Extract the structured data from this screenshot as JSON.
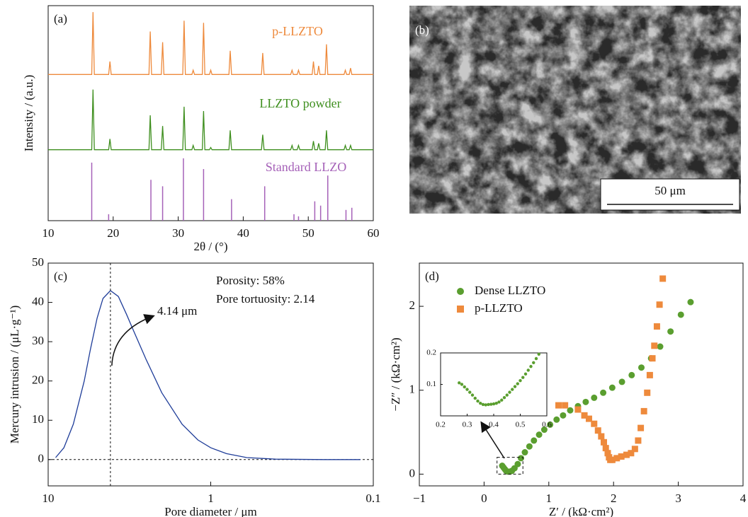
{
  "chart_data": [
    {
      "type": "line",
      "panel_label": "(a)",
      "xlabel": "2θ / (°)",
      "ylabel": "Intensity / (a.u.)",
      "xlim": [
        10,
        60
      ],
      "xticks": [
        10,
        20,
        30,
        40,
        50,
        60
      ],
      "ylim": [
        0,
        100
      ],
      "series": [
        {
          "name": "p-LLZTO",
          "color": "#ee8a3c",
          "x": [
            10,
            16.7,
            16.9,
            17.1,
            19.3,
            19.5,
            19.7,
            25.5,
            25.7,
            25.9,
            27.4,
            27.6,
            27.8,
            30.7,
            30.9,
            31.1,
            32.1,
            32.3,
            32.5,
            33.7,
            33.9,
            34.1,
            34.8,
            35.0,
            35.2,
            37.8,
            38.0,
            38.2,
            42.8,
            43.0,
            43.2,
            47.3,
            47.5,
            47.7,
            48.3,
            48.5,
            48.7,
            50.6,
            50.8,
            51.0,
            51.4,
            51.6,
            51.8,
            52.6,
            52.8,
            53.0,
            55.5,
            55.7,
            55.9,
            56.3,
            56.5,
            56.7,
            60
          ],
          "values": [
            68,
            68,
            97,
            68,
            68,
            74,
            68,
            68,
            88,
            68,
            68,
            83,
            68,
            68,
            93,
            68,
            68,
            70,
            68,
            68,
            92,
            68,
            68,
            70,
            68,
            68,
            79,
            68,
            68,
            78,
            68,
            68,
            70,
            68,
            68,
            70,
            68,
            68,
            74,
            68,
            68,
            72,
            68,
            68,
            82,
            68,
            68,
            70,
            68,
            68,
            71,
            68,
            68
          ]
        },
        {
          "name": "LLZTO powder",
          "color": "#3f8f1f",
          "x": [
            10,
            16.7,
            16.9,
            17.1,
            19.3,
            19.5,
            19.7,
            25.5,
            25.7,
            25.9,
            27.4,
            27.6,
            27.8,
            30.7,
            30.9,
            31.1,
            32.1,
            32.3,
            32.5,
            33.7,
            33.9,
            34.1,
            34.8,
            35.0,
            35.2,
            37.8,
            38.0,
            38.2,
            42.8,
            43.0,
            43.2,
            47.3,
            47.5,
            47.7,
            48.3,
            48.5,
            48.7,
            50.6,
            50.8,
            51.0,
            51.4,
            51.6,
            51.8,
            52.6,
            52.8,
            53.0,
            55.5,
            55.7,
            55.9,
            56.3,
            56.5,
            56.7,
            60
          ],
          "values": [
            33,
            33,
            61,
            33,
            33,
            38,
            33,
            33,
            49,
            33,
            33,
            44,
            33,
            33,
            53,
            33,
            33,
            35,
            33,
            33,
            51,
            33,
            33,
            34,
            33,
            33,
            42,
            33,
            33,
            40,
            33,
            33,
            35,
            33,
            33,
            35,
            33,
            33,
            37,
            33,
            33,
            36,
            33,
            33,
            42,
            33,
            33,
            35,
            33,
            33,
            35,
            33,
            33
          ]
        },
        {
          "name": "Standard LLZO",
          "color": "#a561b8",
          "style": "stick",
          "x": [
            16.7,
            19.3,
            25.8,
            27.6,
            30.8,
            33.9,
            38.2,
            43.3,
            47.8,
            48.5,
            51.0,
            51.9,
            53.0,
            55.8,
            56.7
          ],
          "values": [
            27,
            3,
            19,
            16,
            29,
            24,
            10,
            16,
            3,
            2,
            9,
            7,
            21,
            5,
            6
          ]
        }
      ]
    },
    {
      "type": "line",
      "panel_label": "(c)",
      "xlabel": "Pore diameter / μm",
      "ylabel": "Mercury intrusion / (μL·g⁻¹)",
      "xlog": true,
      "xlim": [
        10,
        0.1
      ],
      "xticks": [
        10,
        1,
        0.1
      ],
      "ylim": [
        -6.7,
        50
      ],
      "yticks": [
        0,
        10,
        20,
        30,
        40,
        50
      ],
      "dashed_zero": true,
      "annotations": [
        {
          "text": "Porosity: 58%"
        },
        {
          "text": "Pore tortuosity: 2.14"
        },
        {
          "text": "4.14 μm",
          "x": 4.14
        }
      ],
      "series": [
        {
          "color": "#1f3d99",
          "x": [
            9,
            8,
            7,
            6,
            5.5,
            5,
            4.6,
            4.14,
            3.7,
            3.3,
            3,
            2.5,
            2,
            1.5,
            1.2,
            1,
            0.8,
            0.6,
            0.4,
            0.2,
            0.12
          ],
          "values": [
            0.5,
            3,
            9,
            20,
            28,
            36,
            41,
            43,
            41.5,
            37,
            33,
            25.5,
            17,
            9,
            5,
            3,
            1.5,
            0.5,
            0.1,
            0,
            0
          ]
        }
      ]
    },
    {
      "type": "scatter",
      "panel_label": "(d)",
      "xlabel": "Z′ / (kΩ·cm²)",
      "ylabel": "−Z″ / (kΩ·cm²)",
      "xlim": [
        -1,
        4
      ],
      "xticks": [
        {
          "value": -1,
          "label": "−1"
        },
        0,
        1,
        2,
        3,
        4
      ],
      "ylim": [
        -0.14,
        2.515
      ],
      "yticks": [
        0,
        1,
        2
      ],
      "series": [
        {
          "name": "Dense LLZTO",
          "color": "#5a9e2f",
          "marker": "circle",
          "x": [
            0.28,
            0.3,
            0.32,
            0.34,
            0.37,
            0.4,
            0.43,
            0.47,
            0.52,
            0.57,
            0.63,
            0.7,
            0.77,
            0.85,
            0.93,
            1.02,
            1.12,
            1.22,
            1.33,
            1.45,
            1.57,
            1.7,
            1.84,
            1.98,
            2.13,
            2.28,
            2.43,
            2.58,
            2.72,
            2.88,
            3.04,
            3.19
          ],
          "values": [
            0.1,
            0.08,
            0.06,
            0.04,
            0.03,
            0.03,
            0.04,
            0.07,
            0.12,
            0.19,
            0.26,
            0.33,
            0.4,
            0.47,
            0.53,
            0.59,
            0.65,
            0.7,
            0.76,
            0.81,
            0.86,
            0.91,
            0.97,
            1.03,
            1.1,
            1.18,
            1.27,
            1.38,
            1.52,
            1.7,
            1.9,
            2.05
          ]
        },
        {
          "name": "p-LLZTO",
          "color": "#ee8a3c",
          "marker": "square",
          "x": [
            1.15,
            1.25,
            1.45,
            1.55,
            1.62,
            1.7,
            1.76,
            1.81,
            1.85,
            1.88,
            1.91,
            1.93,
            1.95,
            1.98,
            2.05,
            2.12,
            2.2,
            2.27,
            2.33,
            2.38,
            2.42,
            2.47,
            2.52,
            2.56,
            2.6,
            2.63,
            2.67,
            2.71,
            2.76
          ],
          "values": [
            0.82,
            0.82,
            0.77,
            0.7,
            0.66,
            0.6,
            0.52,
            0.45,
            0.38,
            0.31,
            0.25,
            0.2,
            0.17,
            0.17,
            0.19,
            0.21,
            0.23,
            0.25,
            0.3,
            0.4,
            0.55,
            0.75,
            0.97,
            1.18,
            1.38,
            1.53,
            1.76,
            2.02,
            2.33
          ]
        }
      ],
      "inset": {
        "xlim": [
          0.2,
          0.6
        ],
        "xticks": [
          0.2,
          0.3,
          0.4,
          0.5,
          0.6
        ],
        "ylim": [
          0,
          0.2
        ],
        "yticks": [
          0.1,
          0.2
        ],
        "color": "#5a9e2f",
        "x": [
          0.27,
          0.28,
          0.29,
          0.3,
          0.31,
          0.32,
          0.33,
          0.34,
          0.35,
          0.36,
          0.37,
          0.38,
          0.39,
          0.4,
          0.41,
          0.42,
          0.43,
          0.44,
          0.45,
          0.46,
          0.47,
          0.48,
          0.49,
          0.5,
          0.51,
          0.52,
          0.53,
          0.54,
          0.55,
          0.56,
          0.57
        ],
        "values": [
          0.105,
          0.1,
          0.092,
          0.084,
          0.075,
          0.066,
          0.056,
          0.047,
          0.04,
          0.036,
          0.035,
          0.036,
          0.037,
          0.038,
          0.04,
          0.044,
          0.05,
          0.058,
          0.066,
          0.075,
          0.084,
          0.093,
          0.102,
          0.112,
          0.122,
          0.133,
          0.145,
          0.157,
          0.169,
          0.182,
          0.196
        ]
      }
    }
  ],
  "image_panel": {
    "label": "(b)",
    "scale_bar": "50 μm"
  }
}
